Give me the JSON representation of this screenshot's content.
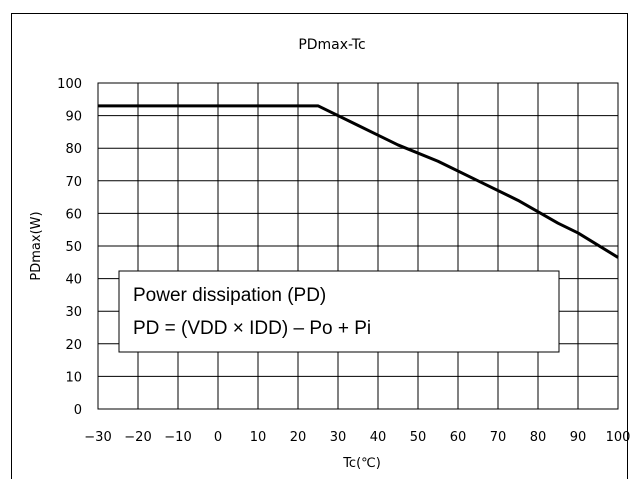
{
  "chart_data": {
    "type": "line",
    "title": "PDmax-Tc",
    "xlabel": "Tc(℃)",
    "ylabel": "PDmax(W)",
    "xlim": [
      -30,
      100
    ],
    "ylim": [
      0,
      100
    ],
    "xticks": [
      -30,
      -20,
      -10,
      0,
      10,
      20,
      30,
      40,
      50,
      60,
      70,
      80,
      90,
      100
    ],
    "yticks": [
      0,
      10,
      20,
      30,
      40,
      50,
      60,
      70,
      80,
      90,
      100
    ],
    "grid": true,
    "series": [
      {
        "x": [
          -30,
          25,
          35,
          45,
          55,
          65,
          75,
          85,
          90,
          100
        ],
        "y": [
          93,
          93,
          87,
          81,
          76,
          70,
          64,
          57,
          54,
          46.5
        ]
      }
    ],
    "annotation": {
      "lines": [
        "Power dissipation (PD)",
        "PD = (VDD × IDD) – Po + Pi"
      ]
    }
  }
}
